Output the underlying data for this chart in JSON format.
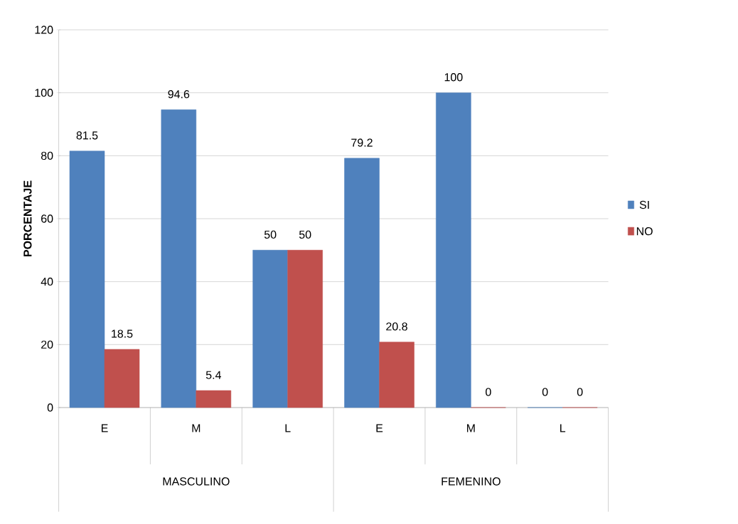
{
  "chart_data": {
    "type": "bar",
    "ylabel": "PORCENTAJE",
    "categories": [
      "E",
      "M",
      "L",
      "E",
      "M",
      "L"
    ],
    "series": [
      {
        "name": "SI",
        "color": "#4f81bd",
        "values": [
          81.5,
          94.6,
          50,
          79.2,
          100,
          0
        ]
      },
      {
        "name": "NO",
        "color": "#c0504d",
        "values": [
          18.5,
          5.4,
          50,
          20.8,
          0,
          0
        ]
      }
    ],
    "annotations": [
      "MASCULINO",
      "FEMENINO"
    ],
    "ylim": [
      0,
      120
    ],
    "yticks": [
      0,
      20,
      40,
      60,
      80,
      100,
      120
    ],
    "grid": "y",
    "legend": "right",
    "data_labels": true
  }
}
